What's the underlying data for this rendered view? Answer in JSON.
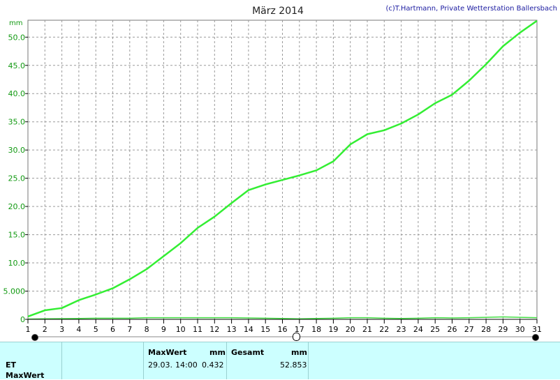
{
  "chart_data": {
    "type": "line",
    "title": "März 2014",
    "copyright": "(c)T.Hartmann, Private Wetterstation Ballersbach",
    "ylabel": "mm",
    "xlabel": "",
    "ylim": [
      0,
      53
    ],
    "y_ticks": [
      "0",
      "5.000",
      "10.0",
      "15.0",
      "20.0",
      "25.0",
      "30.0",
      "35.0",
      "40.0",
      "45.0",
      "50.0"
    ],
    "y_tick_values": [
      0,
      5,
      10,
      15,
      20,
      25,
      30,
      35,
      40,
      45,
      50
    ],
    "x_ticks": [
      "1",
      "2",
      "3",
      "4",
      "5",
      "6",
      "7",
      "8",
      "9",
      "10",
      "11",
      "12",
      "13",
      "14",
      "15",
      "16",
      "17",
      "18",
      "19",
      "20",
      "21",
      "22",
      "23",
      "24",
      "25",
      "26",
      "27",
      "28",
      "29",
      "30",
      "31"
    ],
    "xlim": [
      1,
      31
    ],
    "grid": true,
    "legend_position": "top-left",
    "series": [
      {
        "name": "ET",
        "color": "#33ee33",
        "x": [
          1,
          2,
          3,
          4,
          5,
          6,
          7,
          8,
          9,
          10,
          11,
          12,
          13,
          14,
          15,
          16,
          17,
          18,
          19,
          20,
          21,
          22,
          23,
          24,
          25,
          26,
          27,
          28,
          29,
          30,
          31
        ],
        "values": [
          0.5,
          1.6,
          2.0,
          3.4,
          4.4,
          5.5,
          7.1,
          8.9,
          11.2,
          13.5,
          16.2,
          18.2,
          20.6,
          22.9,
          23.9,
          24.7,
          25.5,
          26.4,
          28.0,
          31.0,
          32.8,
          33.5,
          34.7,
          36.3,
          38.3,
          39.8,
          42.3,
          45.2,
          48.4,
          50.8,
          52.9
        ]
      }
    ],
    "secondary_line": {
      "color": "#44dd44",
      "description": "hourly values near zero",
      "values": [
        0.05,
        0.1,
        0.12,
        0.15,
        0.2,
        0.2,
        0.2,
        0.3,
        0.3,
        0.3,
        0.3,
        0.3,
        0.3,
        0.25,
        0.2,
        0.15,
        0.1,
        0.15,
        0.2,
        0.3,
        0.3,
        0.2,
        0.15,
        0.2,
        0.3,
        0.25,
        0.3,
        0.35,
        0.43,
        0.35,
        0.3
      ]
    }
  },
  "panel": {
    "row_label_1": "ET",
    "row_label_2": "MaxWert",
    "max_header": "MaxWert",
    "max_unit": "mm",
    "max_date": "29.03.",
    "max_time": "14:00",
    "max_value": "0.432",
    "total_header": "Gesamt",
    "total_unit": "mm",
    "total_value": "52.853"
  }
}
